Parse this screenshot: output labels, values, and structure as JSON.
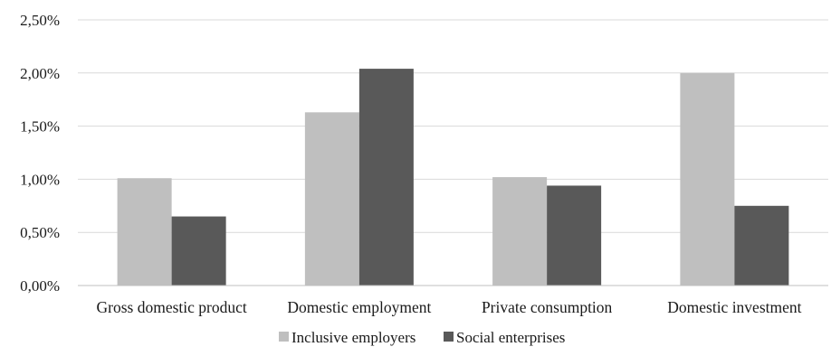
{
  "chart_data": {
    "type": "bar",
    "categories": [
      "Gross domestic product",
      "Domestic employment",
      "Private consumption",
      "Domestic investment"
    ],
    "series": [
      {
        "name": "Inclusive employers",
        "color": "#bfbfbf",
        "values": [
          1.01,
          1.63,
          1.02,
          2.0
        ]
      },
      {
        "name": "Social enterprises",
        "color": "#595959",
        "values": [
          0.65,
          2.04,
          0.94,
          0.75
        ]
      }
    ],
    "y_ticks": [
      "0,00%",
      "0,50%",
      "1,00%",
      "1,50%",
      "2,00%",
      "2,50%"
    ],
    "ylim": [
      0,
      2.5
    ],
    "y_unit": "%",
    "grid": true,
    "legend_position": "bottom",
    "title": "",
    "xlabel": "",
    "ylabel": ""
  }
}
